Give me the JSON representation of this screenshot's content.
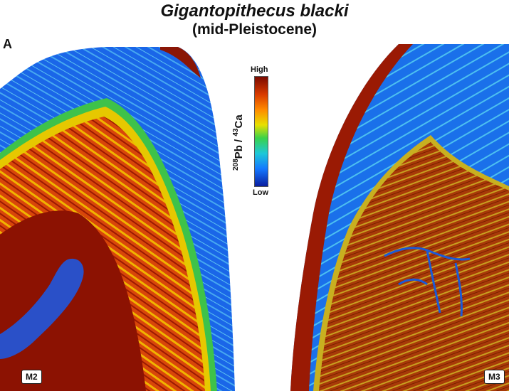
{
  "figure": {
    "title": "Gigantopithecus blacki",
    "subtitle": "(mid-Pleistocene)",
    "panel_letter": "A"
  },
  "color_scale": {
    "label_main_a": "208",
    "label_main_b": "Pb / ",
    "label_main_c": "43",
    "label_main_d": "Ca",
    "high": "High",
    "low": "Low",
    "colors": [
      "#7a0a00",
      "#d83a00",
      "#ff8a00",
      "#e8e000",
      "#3ad24a",
      "#1ec8d8",
      "#1478ff",
      "#0a1ea0"
    ]
  },
  "specimens": {
    "left_tag": "M2",
    "right_tag": "M3"
  }
}
